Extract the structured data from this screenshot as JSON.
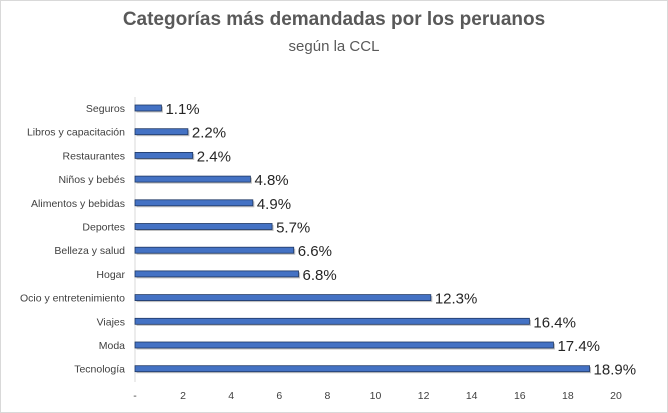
{
  "chart_data": {
    "type": "bar",
    "orientation": "horizontal",
    "title": "Categorías más demandadas por los peruanos",
    "subtitle": "según la CCL",
    "categories": [
      "Seguros",
      "Libros y capacitación",
      "Restaurantes",
      "Niños y bebés",
      "Alimentos y bebidas",
      "Deportes",
      "Belleza y salud",
      "Hogar",
      "Ocio y entretenimiento",
      "Viajes",
      "Moda",
      "Tecnología"
    ],
    "values": [
      1.1,
      2.2,
      2.4,
      4.8,
      4.9,
      5.7,
      6.6,
      6.8,
      12.3,
      16.4,
      17.4,
      18.9
    ],
    "labels": [
      "1.1%",
      "2.2%",
      "2.4%",
      "4.8%",
      "4.9%",
      "5.7%",
      "6.6%",
      "6.8%",
      "12.3%",
      "16.4%",
      "17.4%",
      "18.9%"
    ],
    "xlim": [
      0,
      20
    ],
    "xticks": [
      "-",
      "2",
      "4",
      "6",
      "8",
      "10",
      "12",
      "14",
      "16",
      "18",
      "20"
    ],
    "xlabel": "",
    "ylabel": "",
    "bar_color": "#4472c4",
    "bar_edge_color": "#1f3864",
    "grid": false
  }
}
